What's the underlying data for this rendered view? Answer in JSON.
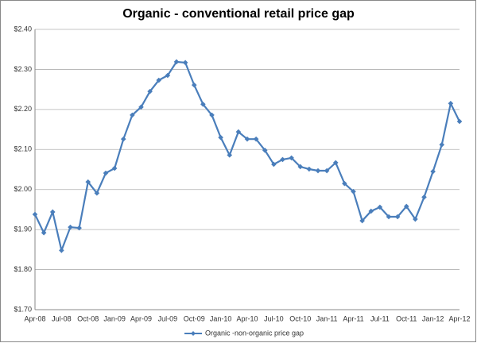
{
  "chart_data": {
    "type": "line",
    "title": "Organic - conventional  retail price gap",
    "categories": [
      "Apr-08",
      null,
      null,
      "Jul-08",
      null,
      null,
      "Oct-08",
      null,
      null,
      "Jan-09",
      null,
      null,
      "Apr-09",
      null,
      null,
      "Jul-09",
      null,
      null,
      "Oct-09",
      null,
      null,
      "Jan-10",
      null,
      null,
      "Apr-10",
      null,
      null,
      "Jul-10",
      null,
      null,
      "Oct-10",
      null,
      null,
      "Jan-11",
      null,
      null,
      "Apr-11",
      null,
      null,
      "Jul-11",
      null,
      null,
      "Oct-11",
      null,
      null,
      "Jan-12",
      null,
      null,
      "Apr-12"
    ],
    "series": [
      {
        "name": "Organic -non-organic price gap",
        "color": "#4a7ebb",
        "values": [
          1.938,
          1.892,
          1.944,
          1.848,
          1.906,
          1.904,
          2.019,
          1.991,
          2.041,
          2.053,
          2.126,
          2.186,
          2.206,
          2.245,
          2.273,
          2.285,
          2.319,
          2.317,
          2.261,
          2.213,
          2.186,
          2.13,
          2.086,
          2.144,
          2.126,
          2.126,
          2.098,
          2.063,
          2.075,
          2.079,
          2.057,
          2.051,
          2.047,
          2.047,
          2.067,
          2.015,
          1.995,
          1.922,
          1.946,
          1.956,
          1.932,
          1.932,
          1.958,
          1.926,
          1.981,
          2.045,
          2.112,
          2.215,
          2.17
        ]
      }
    ],
    "ylim": [
      1.7,
      2.4
    ],
    "yticks": [
      {
        "value": 1.7,
        "label": "$1.70"
      },
      {
        "value": 1.8,
        "label": "$1.80"
      },
      {
        "value": 1.9,
        "label": "$1.90"
      },
      {
        "value": 2.0,
        "label": "$2.00"
      },
      {
        "value": 2.1,
        "label": "$2.10"
      },
      {
        "value": 2.2,
        "label": "$2.20"
      },
      {
        "value": 2.3,
        "label": "$2.30"
      },
      {
        "value": 2.4,
        "label": "$2.40"
      }
    ],
    "grid": true,
    "legend": "bottom"
  }
}
